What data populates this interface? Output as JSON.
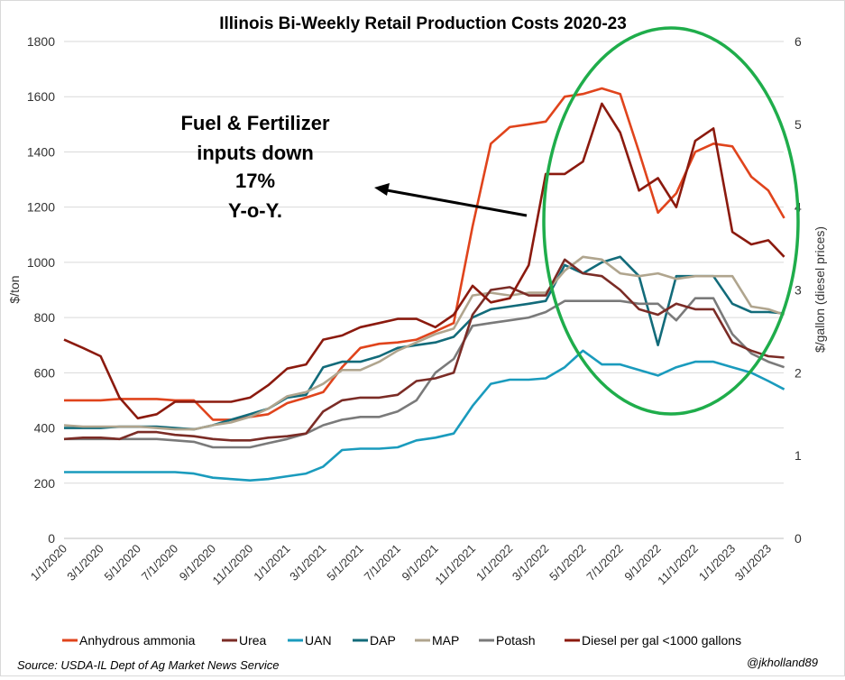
{
  "chart_data": {
    "type": "line",
    "title": "Illinois Bi-Weekly Retail Production Costs 2020-23",
    "ylabel": "$/ton",
    "y2label": "$/gallon (diesel prices)",
    "xlabel": "",
    "ylim": [
      0,
      1800
    ],
    "y2lim": [
      0,
      6
    ],
    "yticks": [
      "0",
      "200",
      "400",
      "600",
      "800",
      "1000",
      "1200",
      "1400",
      "1600",
      "1800"
    ],
    "y2ticks": [
      "0",
      "1",
      "2",
      "3",
      "4",
      "5",
      "6"
    ],
    "xticks": [
      "1/1/2020",
      "3/1/2020",
      "5/1/2020",
      "7/1/2020",
      "9/1/2020",
      "11/1/2020",
      "1/1/2021",
      "3/1/2021",
      "5/1/2021",
      "7/1/2021",
      "9/1/2021",
      "11/1/2021",
      "1/1/2022",
      "3/1/2022",
      "5/1/2022",
      "7/1/2022",
      "9/1/2022",
      "11/1/2022",
      "1/1/2023",
      "3/1/2023"
    ],
    "grid": true,
    "legend": "bottom",
    "x": [
      "2020-01-01",
      "2020-02-01",
      "2020-03-01",
      "2020-04-01",
      "2020-05-01",
      "2020-06-01",
      "2020-07-01",
      "2020-08-01",
      "2020-09-01",
      "2020-10-01",
      "2020-11-01",
      "2020-12-01",
      "2021-01-01",
      "2021-02-01",
      "2021-03-01",
      "2021-04-01",
      "2021-05-01",
      "2021-06-01",
      "2021-07-01",
      "2021-08-01",
      "2021-09-01",
      "2021-10-01",
      "2021-11-01",
      "2021-12-01",
      "2022-01-01",
      "2022-02-01",
      "2022-03-01",
      "2022-04-01",
      "2022-05-01",
      "2022-06-01",
      "2022-07-01",
      "2022-08-01",
      "2022-09-01",
      "2022-10-01",
      "2022-11-01",
      "2022-12-01",
      "2023-01-01",
      "2023-02-01",
      "2023-03-01",
      "2023-03-27"
    ],
    "series": [
      {
        "name": "Anhydrous ammonia",
        "color": "#e0441c",
        "axis": "left",
        "values": [
          500,
          500,
          500,
          505,
          505,
          505,
          500,
          500,
          430,
          430,
          440,
          450,
          490,
          510,
          530,
          620,
          690,
          705,
          710,
          720,
          750,
          780,
          1130,
          1430,
          1490,
          1500,
          1510,
          1600,
          1610,
          1630,
          1610,
          1400,
          1180,
          1250,
          1400,
          1430,
          1420,
          1310,
          1260,
          1160
        ]
      },
      {
        "name": "Urea",
        "color": "#7b2c26",
        "axis": "left",
        "values": [
          360,
          365,
          365,
          360,
          385,
          385,
          375,
          370,
          360,
          355,
          355,
          365,
          370,
          380,
          460,
          500,
          510,
          510,
          520,
          570,
          580,
          600,
          810,
          900,
          910,
          880,
          880,
          1010,
          960,
          950,
          900,
          830,
          810,
          850,
          830,
          830,
          710,
          680,
          660,
          655
        ]
      },
      {
        "name": "UAN",
        "color": "#1a9bbd",
        "axis": "left",
        "values": [
          240,
          240,
          240,
          240,
          240,
          240,
          240,
          235,
          220,
          215,
          210,
          215,
          225,
          235,
          260,
          320,
          325,
          325,
          330,
          355,
          365,
          380,
          480,
          560,
          575,
          575,
          580,
          620,
          680,
          630,
          630,
          610,
          590,
          620,
          640,
          640,
          620,
          600,
          570,
          540
        ]
      },
      {
        "name": "DAP",
        "color": "#126b7a",
        "axis": "left",
        "values": [
          400,
          400,
          400,
          405,
          405,
          405,
          400,
          395,
          410,
          430,
          450,
          470,
          510,
          520,
          620,
          640,
          640,
          660,
          690,
          700,
          710,
          730,
          800,
          830,
          840,
          850,
          860,
          990,
          960,
          1000,
          1020,
          950,
          700,
          950,
          950,
          950,
          850,
          820,
          820,
          815
        ]
      },
      {
        "name": "MAP",
        "color": "#b0a58e",
        "axis": "left",
        "values": [
          410,
          405,
          405,
          405,
          405,
          400,
          395,
          395,
          410,
          420,
          440,
          470,
          515,
          530,
          560,
          610,
          610,
          640,
          680,
          710,
          740,
          760,
          880,
          890,
          880,
          890,
          890,
          970,
          1020,
          1010,
          960,
          950,
          960,
          940,
          950,
          950,
          950,
          840,
          830,
          810
        ]
      },
      {
        "name": "Potash",
        "color": "#7a7a7a",
        "axis": "left",
        "values": [
          360,
          360,
          360,
          360,
          360,
          360,
          355,
          350,
          330,
          330,
          330,
          345,
          360,
          380,
          410,
          430,
          440,
          440,
          460,
          500,
          600,
          650,
          770,
          780,
          790,
          800,
          820,
          860,
          860,
          860,
          860,
          850,
          850,
          790,
          870,
          870,
          740,
          670,
          640,
          620
        ]
      },
      {
        "name": "Diesel per gal <1000 gallons",
        "color": "#8b1a0e",
        "axis": "right",
        "values": [
          2.4,
          2.3,
          2.2,
          1.7,
          1.45,
          1.5,
          1.65,
          1.65,
          1.65,
          1.65,
          1.7,
          1.85,
          2.05,
          2.1,
          2.4,
          2.45,
          2.55,
          2.6,
          2.65,
          2.65,
          2.55,
          2.7,
          3.05,
          2.85,
          2.9,
          3.3,
          4.4,
          4.4,
          4.55,
          5.25,
          4.9,
          4.2,
          4.35,
          4.0,
          4.8,
          4.95,
          3.7,
          3.55,
          3.6,
          3.4
        ]
      }
    ],
    "annotations": [
      "Fuel & Fertilizer",
      "inputs down",
      "17%",
      "Y-o-Y."
    ],
    "highlight_color": "#1fad4b"
  },
  "footer": {
    "source": "Source: USDA-IL Dept of Ag Market News Service",
    "credit": "@jkholland89"
  }
}
